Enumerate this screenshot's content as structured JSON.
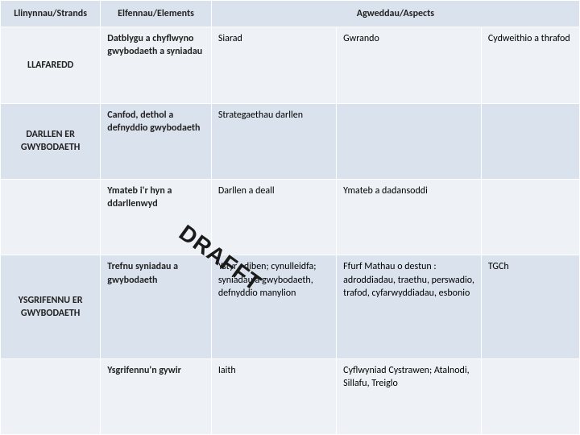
{
  "header": {
    "strands": "Llinynnau/Strands",
    "elements": "Elfennau/Elements",
    "aspects": "Agweddau/Aspects"
  },
  "rows": [
    {
      "strand": "LLAFAREDD",
      "element": "Datblygu a chyflwyno gwybodaeth a syniadau",
      "a1": "Siarad",
      "a2": "Gwrando",
      "a3": "Cydweithio a thrafod"
    },
    {
      "strand": "DARLLEN ER GWYBODAETH",
      "element": "Canfod, dethol a defnyddio gwybodaeth",
      "a1": "Strategaethau darllen",
      "a2": "",
      "a3": ""
    },
    {
      "strand": "",
      "element": "Ymateb i'r hyn a ddarllenwyd",
      "a1": "Darllen a deall",
      "a2": "Ymateb a dadansoddi",
      "a3": ""
    },
    {
      "strand": "YSGRIFENNU ER GWYBODAETH",
      "element": "Trefnu syniadau a gwybodaeth",
      "a1": "Ystyr : diben; cynulleidfa; syniadau a gwybodaeth, defnyddio manylion",
      "a2": "Ffurf Mathau o destun : adroddiadau, traethu, perswadio, trafod, cyfarwyddiadau, esbonio",
      "a3": "TGCh"
    },
    {
      "strand": "",
      "element": "Ysgrifennu'n gywir",
      "a1": "Iaith",
      "a2": "Cyflwyniad Cystrawen; Atalnodi, Sillafu, Treiglo",
      "a3": ""
    }
  ],
  "watermark": "DRAFFT"
}
